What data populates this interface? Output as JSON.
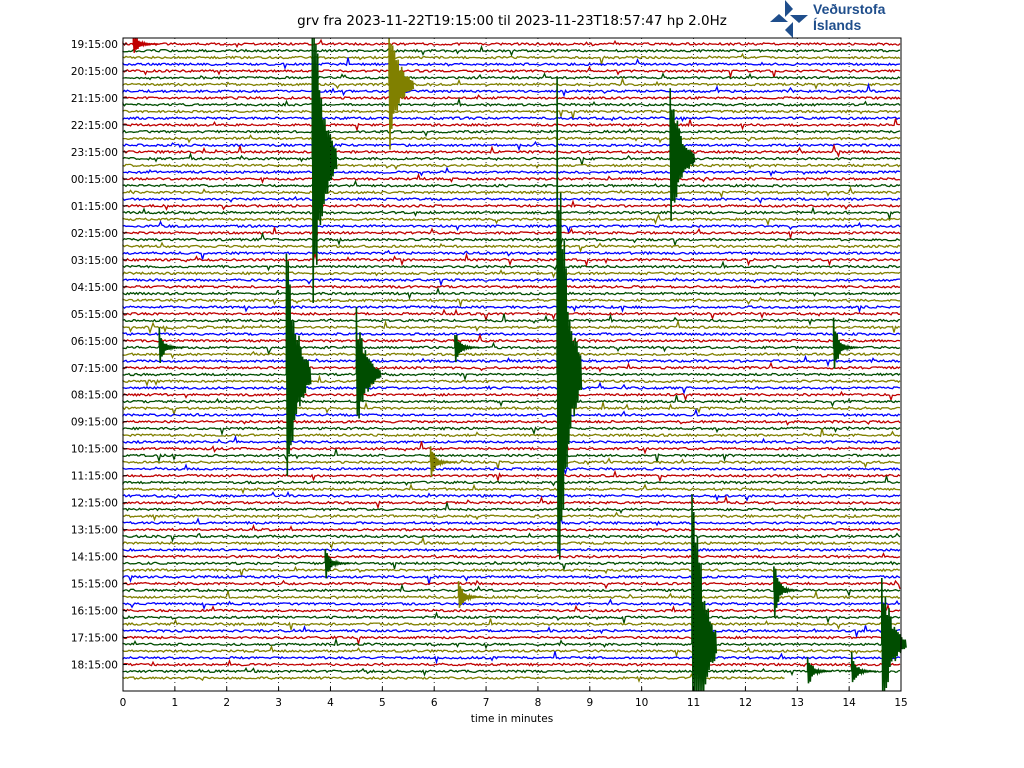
{
  "title": "grv fra 2023-11-22T19:15:00 til 2023-11-23T18:57:47 hp 2.0Hz",
  "logo": {
    "line1": "Veðurstofa",
    "line2": "Íslands",
    "icon": "arrows-logo-icon",
    "color": "#1f4e8c"
  },
  "chart_data": {
    "type": "line",
    "subtype": "helicorder",
    "title": "grv fra 2023-11-22T19:15:00 til 2023-11-23T18:57:47 hp 2.0Hz",
    "xlabel": "time in minutes",
    "ylabel": "",
    "xlim": [
      0,
      15
    ],
    "x_ticks": [
      "0",
      "1",
      "2",
      "3",
      "4",
      "5",
      "6",
      "7",
      "8",
      "9",
      "10",
      "11",
      "12",
      "13",
      "14",
      "15"
    ],
    "y_ticks": [
      "19:15:00",
      "20:15:00",
      "21:15:00",
      "22:15:00",
      "23:15:00",
      "00:15:00",
      "01:15:00",
      "02:15:00",
      "03:15:00",
      "04:15:00",
      "05:15:00",
      "06:15:00",
      "07:15:00",
      "08:15:00",
      "09:15:00",
      "10:15:00",
      "11:15:00",
      "12:15:00",
      "13:15:00",
      "14:15:00",
      "15:15:00",
      "16:15:00",
      "17:15:00",
      "18:15:00"
    ],
    "trace_minutes": 15,
    "trace_count": 95,
    "last_trace_end_minute": 12.78,
    "trace_colors": [
      "#c00000",
      "#004d00",
      "#808000",
      "#0000ff"
    ],
    "grid": "vertical dotted at each minute",
    "events": [
      {
        "trace": 17,
        "minute": 3.65,
        "amp": 30
      },
      {
        "trace": 49,
        "minute": 8.37,
        "amp": 45
      },
      {
        "trace": 17,
        "minute": 10.55,
        "amp": 13
      },
      {
        "trace": 89,
        "minute": 10.97,
        "amp": 33
      },
      {
        "trace": 49,
        "minute": 3.15,
        "amp": 24
      },
      {
        "trace": 6,
        "minute": 5.13,
        "amp": 11
      },
      {
        "trace": 89,
        "minute": 14.63,
        "amp": 12
      },
      {
        "trace": 49,
        "minute": 4.5,
        "amp": 10
      },
      {
        "trace": 45,
        "minute": 13.7,
        "amp": 5
      },
      {
        "trace": 81,
        "minute": 12.55,
        "amp": 5
      },
      {
        "trace": 45,
        "minute": 6.4,
        "amp": 3
      },
      {
        "trace": 45,
        "minute": 0.7,
        "amp": 3
      },
      {
        "trace": 0,
        "minute": 0.2,
        "amp": 2
      },
      {
        "trace": 77,
        "minute": 3.9,
        "amp": 3
      },
      {
        "trace": 93,
        "minute": 13.2,
        "amp": 3
      },
      {
        "trace": 93,
        "minute": 14.05,
        "amp": 3
      },
      {
        "trace": 62,
        "minute": 5.93,
        "amp": 3
      },
      {
        "trace": 82,
        "minute": 6.47,
        "amp": 3
      }
    ]
  }
}
